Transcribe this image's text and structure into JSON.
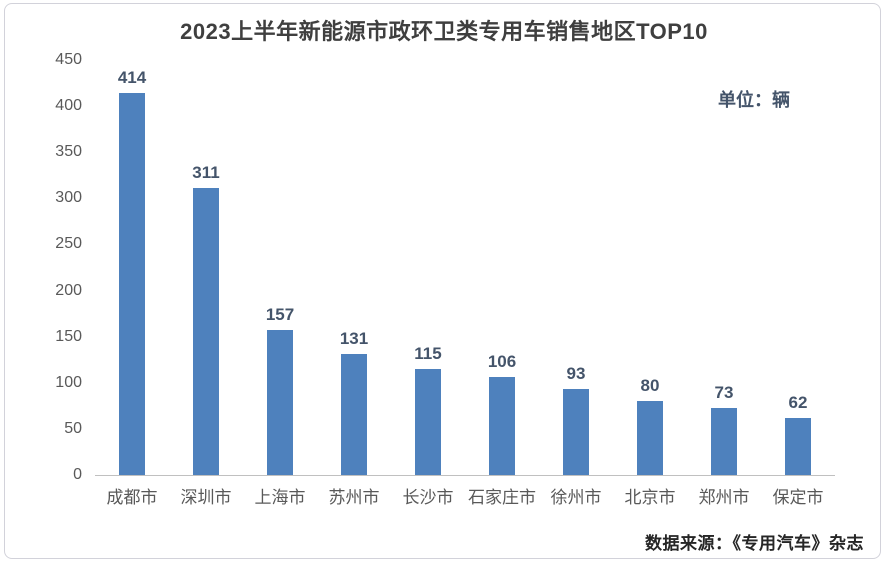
{
  "page": {
    "title": "2023上半年新能源市政环卫类专用车销售地区TOP10",
    "unit_label": "单位：辆",
    "source_label": "数据来源：《专用汽车》杂志"
  },
  "colors": {
    "bar": "#4e81bd",
    "title_text": "#3f3f3f",
    "tick_text": "#595959",
    "value_label_text": "#44546a",
    "unit_text": "#44546a",
    "source_text": "#262626",
    "axis_line": "#c0c0c0",
    "frame_border": "#d2d2da"
  },
  "chart_data": {
    "type": "bar",
    "title": "2023上半年新能源市政环卫类专用车销售地区TOP10",
    "unit": "辆",
    "categories": [
      "成都市",
      "深圳市",
      "上海市",
      "苏州市",
      "长沙市",
      "石家庄市",
      "徐州市",
      "北京市",
      "郑州市",
      "保定市"
    ],
    "values": [
      414,
      311,
      157,
      131,
      115,
      106,
      93,
      80,
      73,
      62
    ],
    "xlabel": "",
    "ylabel": "",
    "ylim": [
      0,
      450
    ],
    "yticks": [
      0,
      50,
      100,
      150,
      200,
      250,
      300,
      350,
      400,
      450
    ],
    "grid": false,
    "legend": "none",
    "data_labels": true,
    "source": "数据来源：《专用汽车》杂志"
  }
}
